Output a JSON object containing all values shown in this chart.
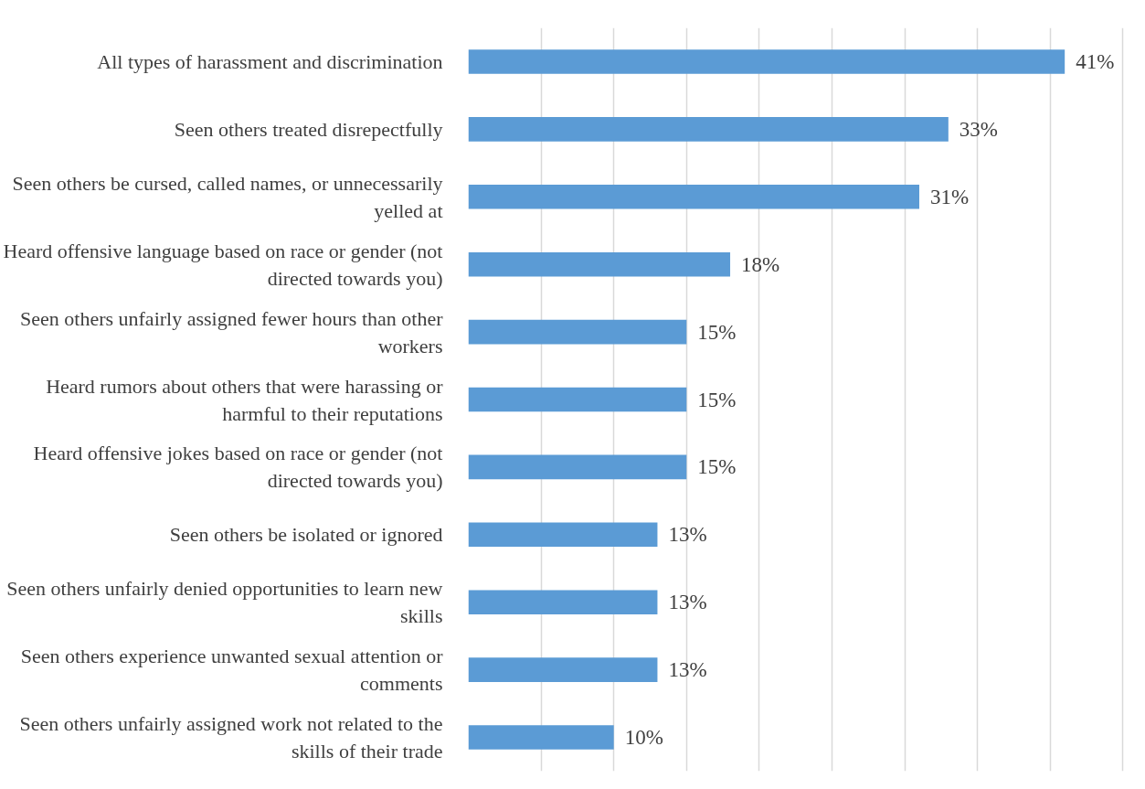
{
  "chart_data": {
    "type": "bar",
    "orientation": "horizontal",
    "categories": [
      "All types of harassment and discrimination",
      "Seen others treated disrepectfully",
      "Seen others be cursed, called names, or unnecessarily yelled at",
      "Heard offensive language based on race or gender (not directed towards you)",
      "Seen others unfairly assigned fewer hours than other workers",
      "Heard rumors about others that were harassing or harmful to their reputations",
      "Heard offensive jokes based on race or gender (not directed towards you)",
      "Seen others be isolated or ignored",
      "Seen others unfairly denied opportunities to learn new skills",
      "Seen others experience unwanted sexual attention or comments",
      "Seen others unfairly assigned work not related to the skills of their trade"
    ],
    "values": [
      41,
      33,
      31,
      18,
      15,
      15,
      15,
      13,
      13,
      13,
      10
    ],
    "value_labels": [
      "41%",
      "33%",
      "31%",
      "18%",
      "15%",
      "15%",
      "15%",
      "13%",
      "13%",
      "13%",
      "10%"
    ],
    "color": "#5b9bd5",
    "tick_labels": "y",
    "grid": "x"
  }
}
